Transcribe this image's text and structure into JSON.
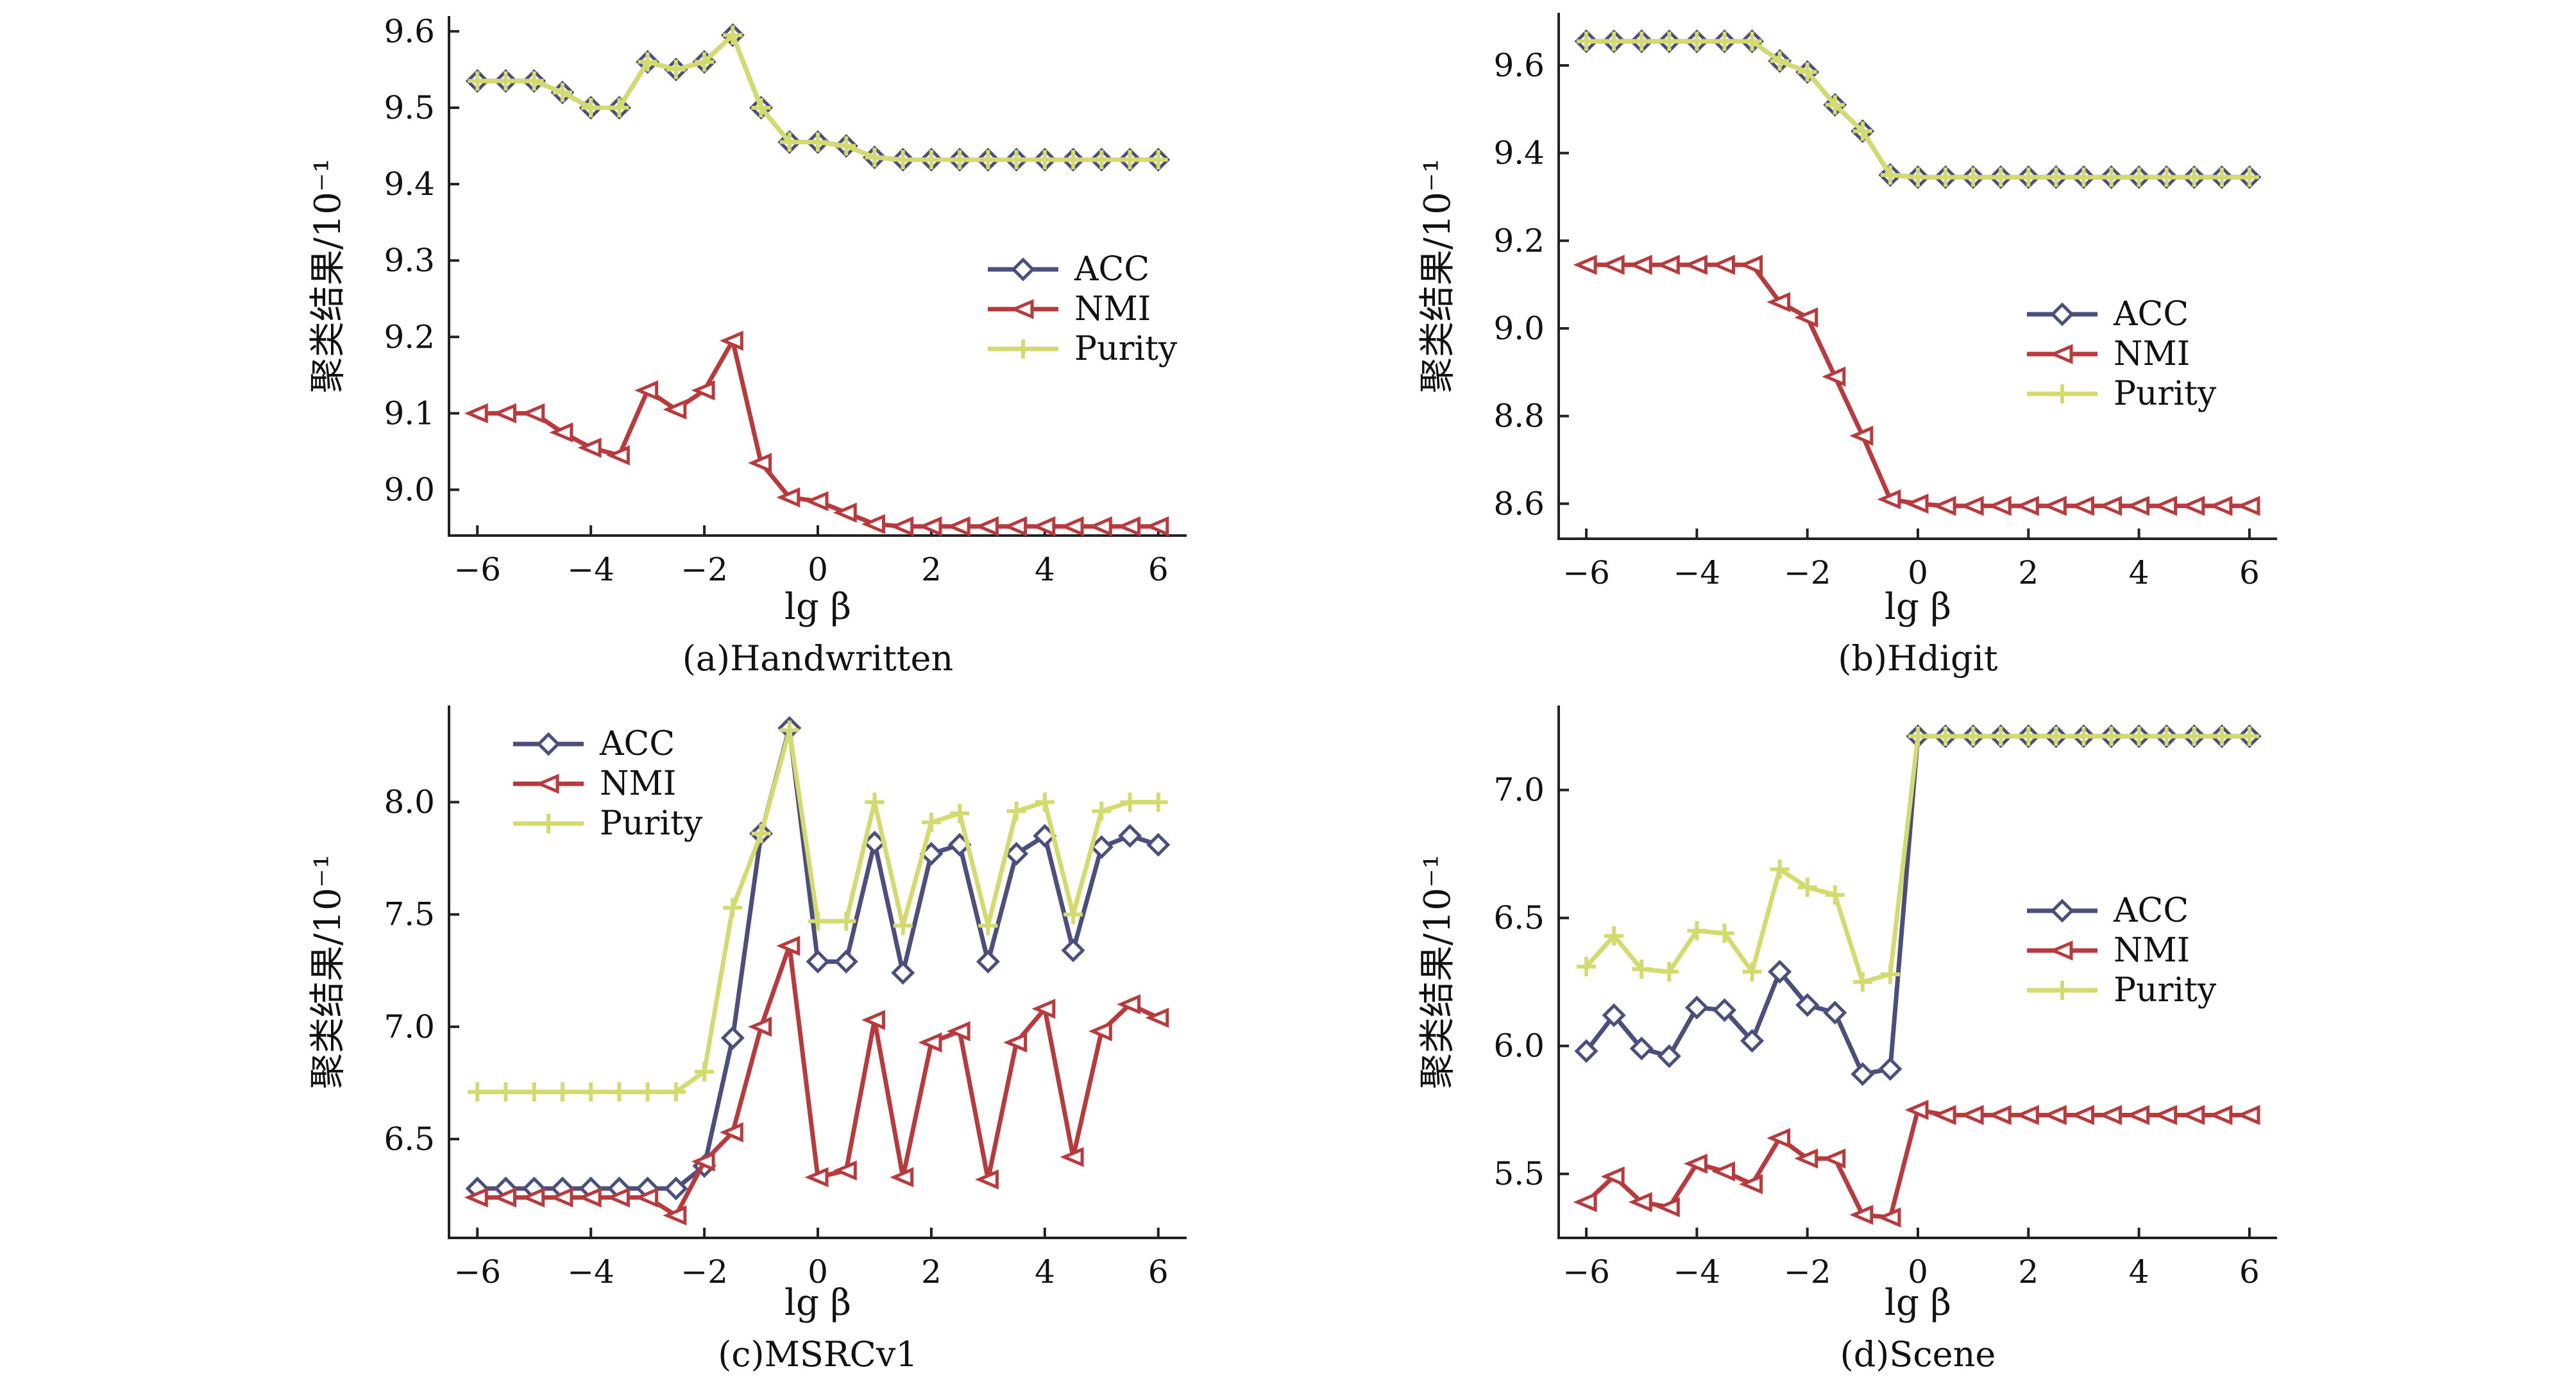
{
  "chart_data": [
    {
      "type": "line",
      "caption": "(a)Handwritten",
      "xlabel": "lg β",
      "ylabel": "聚类结果/10⁻¹",
      "xlim": [
        -6.5,
        6.5
      ],
      "ylim": [
        8.94,
        9.62
      ],
      "xticks": [
        -6,
        -4,
        -2,
        0,
        2,
        4,
        6
      ],
      "yticks": [
        9.0,
        9.1,
        9.2,
        9.3,
        9.4,
        9.5,
        9.6
      ],
      "ytick_labels": [
        "9.0",
        "9.1",
        "9.2",
        "9.3",
        "9.4",
        "9.5",
        "9.6"
      ],
      "xtick_labels": [
        "−6",
        "−4",
        "−2",
        "0",
        "2",
        "4",
        "6"
      ],
      "legend_position": "center-right",
      "x": [
        -6,
        -5.5,
        -5,
        -4.5,
        -4,
        -3.5,
        -3,
        -2.5,
        -2,
        -1.5,
        -1,
        -0.5,
        0,
        0.5,
        1,
        1.5,
        2,
        2.5,
        3,
        3.5,
        4,
        4.5,
        5,
        5.5,
        6
      ],
      "series": [
        {
          "name": "ACC",
          "color": "#4a4f7e",
          "marker": "diamond",
          "values": [
            9.535,
            9.535,
            9.535,
            9.52,
            9.5,
            9.5,
            9.56,
            9.55,
            9.56,
            9.595,
            9.5,
            9.455,
            9.455,
            9.45,
            9.435,
            9.432,
            9.432,
            9.432,
            9.432,
            9.432,
            9.432,
            9.432,
            9.432,
            9.432,
            9.432
          ]
        },
        {
          "name": "NMI",
          "color": "#b93a3d",
          "marker": "triangle-left",
          "values": [
            9.1,
            9.1,
            9.1,
            9.075,
            9.055,
            9.045,
            9.13,
            9.105,
            9.13,
            9.195,
            9.035,
            8.99,
            8.985,
            8.97,
            8.955,
            8.952,
            8.952,
            8.952,
            8.952,
            8.952,
            8.952,
            8.952,
            8.952,
            8.952,
            8.952
          ]
        },
        {
          "name": "Purity",
          "color": "#d4db6e",
          "marker": "plus",
          "values": [
            9.535,
            9.535,
            9.535,
            9.52,
            9.5,
            9.5,
            9.56,
            9.55,
            9.56,
            9.595,
            9.5,
            9.455,
            9.455,
            9.45,
            9.435,
            9.432,
            9.432,
            9.432,
            9.432,
            9.432,
            9.432,
            9.432,
            9.432,
            9.432,
            9.432
          ]
        }
      ]
    },
    {
      "type": "line",
      "caption": "(b)Hdigit",
      "xlabel": "lg β",
      "ylabel": "聚类结果/10⁻¹",
      "xlim": [
        -6.5,
        6.5
      ],
      "ylim": [
        8.52,
        9.72
      ],
      "xticks": [
        -6,
        -4,
        -2,
        0,
        2,
        4,
        6
      ],
      "yticks": [
        8.6,
        8.8,
        9.0,
        9.2,
        9.4,
        9.6
      ],
      "ytick_labels": [
        "8.6",
        "8.8",
        "9.0",
        "9.2",
        "9.4",
        "9.6"
      ],
      "xtick_labels": [
        "−6",
        "−4",
        "−2",
        "0",
        "2",
        "4",
        "6"
      ],
      "legend_position": "center-right",
      "x": [
        -6,
        -5.5,
        -5,
        -4.5,
        -4,
        -3.5,
        -3,
        -2.5,
        -2,
        -1.5,
        -1,
        -0.5,
        0,
        0.5,
        1,
        1.5,
        2,
        2.5,
        3,
        3.5,
        4,
        4.5,
        5,
        5.5,
        6
      ],
      "series": [
        {
          "name": "ACC",
          "color": "#4a4f7e",
          "marker": "diamond",
          "values": [
            9.655,
            9.655,
            9.655,
            9.655,
            9.655,
            9.655,
            9.655,
            9.61,
            9.585,
            9.51,
            9.45,
            9.35,
            9.345,
            9.345,
            9.345,
            9.345,
            9.345,
            9.345,
            9.345,
            9.345,
            9.345,
            9.345,
            9.345,
            9.345,
            9.345
          ]
        },
        {
          "name": "NMI",
          "color": "#b93a3d",
          "marker": "triangle-left",
          "values": [
            9.145,
            9.145,
            9.145,
            9.145,
            9.145,
            9.145,
            9.145,
            9.06,
            9.025,
            8.89,
            8.755,
            8.61,
            8.6,
            8.595,
            8.595,
            8.595,
            8.595,
            8.595,
            8.595,
            8.595,
            8.595,
            8.595,
            8.595,
            8.595,
            8.595
          ]
        },
        {
          "name": "Purity",
          "color": "#d4db6e",
          "marker": "plus",
          "values": [
            9.655,
            9.655,
            9.655,
            9.655,
            9.655,
            9.655,
            9.655,
            9.61,
            9.585,
            9.51,
            9.45,
            9.35,
            9.345,
            9.345,
            9.345,
            9.345,
            9.345,
            9.345,
            9.345,
            9.345,
            9.345,
            9.345,
            9.345,
            9.345,
            9.345
          ]
        }
      ]
    },
    {
      "type": "line",
      "caption": "(c)MSRCv1",
      "xlabel": "lg β",
      "ylabel": "聚类结果/10⁻¹",
      "xlim": [
        -6.5,
        6.5
      ],
      "ylim": [
        6.06,
        8.43
      ],
      "xticks": [
        -6,
        -4,
        -2,
        0,
        2,
        4,
        6
      ],
      "yticks": [
        6.5,
        7.0,
        7.5,
        8.0
      ],
      "ytick_labels": [
        "6.5",
        "7.0",
        "7.5",
        "8.0"
      ],
      "xtick_labels": [
        "−6",
        "−4",
        "−2",
        "0",
        "2",
        "4",
        "6"
      ],
      "legend_position": "top-left",
      "x": [
        -6,
        -5.5,
        -5,
        -4.5,
        -4,
        -3.5,
        -3,
        -2.5,
        -2,
        -1.5,
        -1,
        -0.5,
        0,
        0.5,
        1,
        1.5,
        2,
        2.5,
        3,
        3.5,
        4,
        4.5,
        5,
        5.5,
        6
      ],
      "series": [
        {
          "name": "ACC",
          "color": "#4a4f7e",
          "marker": "diamond",
          "values": [
            6.28,
            6.28,
            6.28,
            6.28,
            6.28,
            6.28,
            6.28,
            6.28,
            6.38,
            6.95,
            7.86,
            8.33,
            7.29,
            7.29,
            7.82,
            7.24,
            7.77,
            7.81,
            7.29,
            7.77,
            7.85,
            7.34,
            7.8,
            7.85,
            7.81
          ]
        },
        {
          "name": "NMI",
          "color": "#b93a3d",
          "marker": "triangle-left",
          "values": [
            6.24,
            6.24,
            6.24,
            6.24,
            6.24,
            6.24,
            6.24,
            6.16,
            6.4,
            6.53,
            7.0,
            7.36,
            6.33,
            6.36,
            7.03,
            6.33,
            6.93,
            6.98,
            6.32,
            6.93,
            7.08,
            6.42,
            6.98,
            7.1,
            7.04
          ]
        },
        {
          "name": "Purity",
          "color": "#d4db6e",
          "marker": "plus",
          "values": [
            6.71,
            6.71,
            6.71,
            6.71,
            6.71,
            6.71,
            6.71,
            6.71,
            6.8,
            7.53,
            7.86,
            8.32,
            7.47,
            7.47,
            8.0,
            7.45,
            7.91,
            7.95,
            7.45,
            7.96,
            8.0,
            7.5,
            7.96,
            8.0,
            8.0
          ]
        }
      ]
    },
    {
      "type": "line",
      "caption": "(d)Scene",
      "xlabel": "lg β",
      "ylabel": "聚类结果/10⁻¹",
      "xlim": [
        -6.5,
        6.5
      ],
      "ylim": [
        5.25,
        7.33
      ],
      "xticks": [
        -6,
        -4,
        -2,
        0,
        2,
        4,
        6
      ],
      "yticks": [
        5.5,
        6.0,
        6.5,
        7.0
      ],
      "ytick_labels": [
        "5.5",
        "6.0",
        "6.5",
        "7.0"
      ],
      "xtick_labels": [
        "−6",
        "−4",
        "−2",
        "0",
        "2",
        "4",
        "6"
      ],
      "legend_position": "center-right",
      "x": [
        -6,
        -5.5,
        -5,
        -4.5,
        -4,
        -3.5,
        -3,
        -2.5,
        -2,
        -1.5,
        -1,
        -0.5,
        0,
        0.5,
        1,
        1.5,
        2,
        2.5,
        3,
        3.5,
        4,
        4.5,
        5,
        5.5,
        6
      ],
      "series": [
        {
          "name": "ACC",
          "color": "#4a4f7e",
          "marker": "diamond",
          "values": [
            5.98,
            6.12,
            5.99,
            5.96,
            6.15,
            6.14,
            6.02,
            6.29,
            6.16,
            6.13,
            5.89,
            5.91,
            7.21,
            7.21,
            7.21,
            7.21,
            7.21,
            7.21,
            7.21,
            7.21,
            7.21,
            7.21,
            7.21,
            7.21,
            7.21
          ]
        },
        {
          "name": "NMI",
          "color": "#b93a3d",
          "marker": "triangle-left",
          "values": [
            5.39,
            5.49,
            5.39,
            5.37,
            5.54,
            5.51,
            5.46,
            5.64,
            5.56,
            5.56,
            5.34,
            5.33,
            5.75,
            5.73,
            5.73,
            5.73,
            5.73,
            5.73,
            5.73,
            5.73,
            5.73,
            5.73,
            5.73,
            5.73,
            5.73
          ]
        },
        {
          "name": "Purity",
          "color": "#d4db6e",
          "marker": "plus",
          "values": [
            6.31,
            6.43,
            6.3,
            6.29,
            6.45,
            6.44,
            6.29,
            6.69,
            6.62,
            6.59,
            6.25,
            6.28,
            7.21,
            7.21,
            7.21,
            7.21,
            7.21,
            7.21,
            7.21,
            7.21,
            7.21,
            7.21,
            7.21,
            7.21,
            7.21
          ]
        }
      ]
    }
  ]
}
